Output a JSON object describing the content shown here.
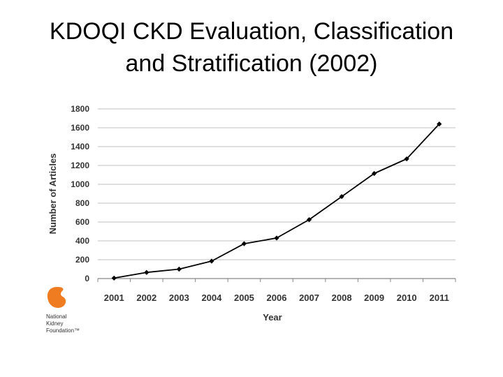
{
  "slide": {
    "title_line1": "KDOQI CKD Evaluation, Classification",
    "title_line2": "and Stratification (2002)"
  },
  "logo": {
    "line1": "National",
    "line2": "Kidney",
    "line3": "Foundation™",
    "color": "#f07c22"
  },
  "chart_data": {
    "type": "line",
    "title": "",
    "xlabel": "Year",
    "ylabel": "Number of Articles",
    "x": [
      "2001",
      "2002",
      "2003",
      "2004",
      "2005",
      "2006",
      "2007",
      "2008",
      "2009",
      "2010",
      "2011"
    ],
    "series": [
      {
        "name": "Articles",
        "values": [
          5,
          65,
          100,
          185,
          370,
          430,
          625,
          870,
          1115,
          1270,
          1640
        ]
      }
    ],
    "ylim": [
      0,
      1800
    ],
    "yticks": [
      0,
      200,
      400,
      600,
      800,
      1000,
      1200,
      1400,
      1600,
      1800
    ],
    "grid": true,
    "legend": "none",
    "line_color": "#000000",
    "grid_color": "#bfbfbf"
  }
}
